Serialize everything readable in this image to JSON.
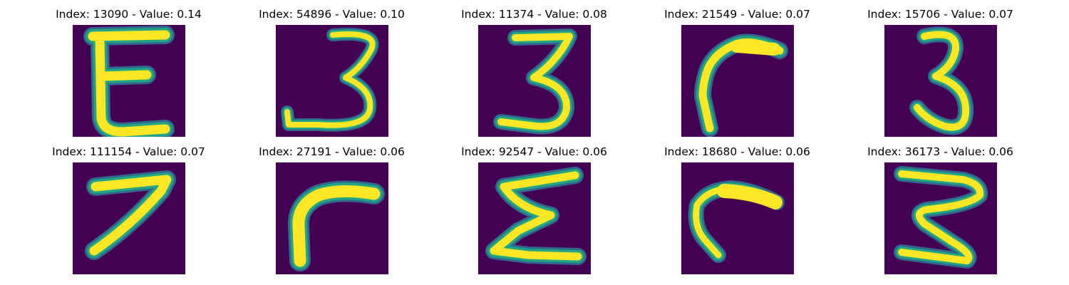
{
  "colors": {
    "background": "#440154",
    "halo_outer": "#31688e",
    "halo_inner": "#21a585",
    "stroke_core": "#fde725"
  },
  "samples": [
    {
      "title": "Index: 13090 - Value: 0.14",
      "glyph": "E"
    },
    {
      "title": "Index: 54896 - Value: 0.10",
      "glyph": "3"
    },
    {
      "title": "Index: 11374 - Value: 0.08",
      "glyph": "3"
    },
    {
      "title": "Index: 21549 - Value: 0.07",
      "glyph": "hook"
    },
    {
      "title": "Index: 15706 - Value: 0.07",
      "glyph": "3"
    },
    {
      "title": "Index: 111154 - Value: 0.07",
      "glyph": "7"
    },
    {
      "title": "Index: 27191 - Value: 0.06",
      "glyph": "hook"
    },
    {
      "title": "Index: 92547 - Value: 0.06",
      "glyph": "E"
    },
    {
      "title": "Index: 18680 - Value: 0.06",
      "glyph": "hook"
    },
    {
      "title": "Index: 36173 - Value: 0.06",
      "glyph": "3"
    }
  ]
}
